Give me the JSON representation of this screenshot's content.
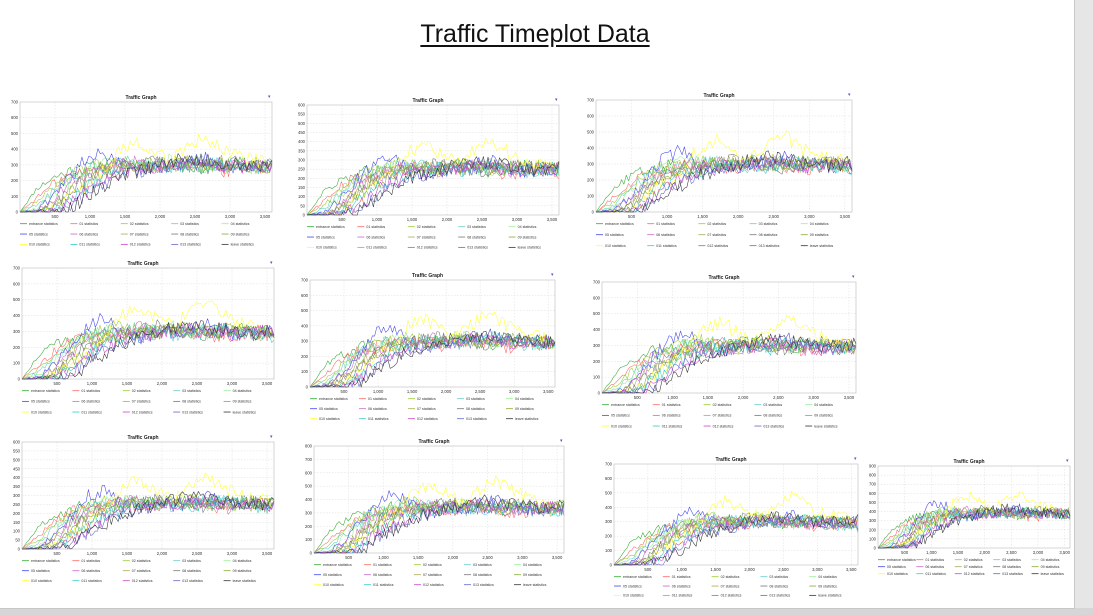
{
  "slide": {
    "title": "Traffic Timeplot Data"
  },
  "colors": {
    "series": [
      "#33aa33",
      "#ff6666",
      "#99cc33",
      "#66cccc",
      "#99ee99",
      "#4444ee",
      "#cc66cc",
      "#aaaa55",
      "#777777",
      "#88aa33",
      "#ffff33",
      "#33cccc",
      "#cc44cc",
      "#6666cc",
      "#333333"
    ],
    "grid": "#dcdcdc",
    "frame": "#b8b8b8"
  },
  "chart_data": [
    {
      "type": "line",
      "title": "Traffic Graph",
      "ylim": [
        0,
        700
      ],
      "yticks": [
        "0",
        "100",
        "200",
        "300",
        "400",
        "500",
        "600",
        "700"
      ],
      "xlim": [
        0,
        3600
      ],
      "xticks": [
        "500",
        "1,000",
        "1,500",
        "2,000",
        "2,500",
        "3,000",
        "3,500"
      ],
      "legend_position": "bottom",
      "series": [
        {
          "name": "entrance statistics",
          "values": [
            0,
            150,
            220,
            260,
            280,
            300,
            290,
            310,
            300,
            320,
            300,
            280,
            300,
            310,
            300,
            290
          ]
        },
        {
          "name": "01 statistics",
          "values": [
            0,
            90,
            180,
            240,
            260,
            280,
            300,
            290,
            270,
            300,
            310,
            290,
            260,
            280,
            300,
            270
          ]
        },
        {
          "name": "02 statistics",
          "values": [
            0,
            60,
            160,
            230,
            280,
            320,
            330,
            300,
            290,
            310,
            330,
            300,
            280,
            300,
            310,
            290
          ]
        },
        {
          "name": "03 statistics",
          "values": [
            0,
            40,
            140,
            220,
            270,
            300,
            320,
            310,
            300,
            280,
            300,
            320,
            300,
            280,
            290,
            300
          ]
        },
        {
          "name": "04 statistics",
          "values": [
            0,
            20,
            120,
            200,
            260,
            310,
            300,
            280,
            310,
            330,
            300,
            290,
            310,
            300,
            280,
            300
          ]
        },
        {
          "name": "05 statistics",
          "values": [
            0,
            10,
            100,
            220,
            350,
            380,
            300,
            260,
            280,
            300,
            320,
            340,
            300,
            280,
            300,
            290
          ]
        },
        {
          "name": "06 statistics",
          "values": [
            0,
            0,
            80,
            180,
            240,
            280,
            300,
            320,
            300,
            290,
            310,
            300,
            280,
            290,
            300,
            280
          ]
        },
        {
          "name": "07 statistics",
          "values": [
            0,
            0,
            60,
            160,
            230,
            270,
            290,
            300,
            310,
            300,
            290,
            300,
            320,
            300,
            280,
            290
          ]
        },
        {
          "name": "08 statistics",
          "values": [
            0,
            0,
            40,
            140,
            220,
            260,
            280,
            300,
            330,
            310,
            290,
            280,
            300,
            320,
            300,
            280
          ]
        },
        {
          "name": "09 statistics",
          "values": [
            0,
            0,
            30,
            120,
            200,
            250,
            270,
            290,
            300,
            310,
            300,
            290,
            310,
            300,
            290,
            300
          ]
        },
        {
          "name": "010 statistics",
          "values": [
            0,
            0,
            20,
            100,
            180,
            260,
            400,
            450,
            380,
            330,
            420,
            480,
            400,
            350,
            330,
            300
          ]
        },
        {
          "name": "011 statistics",
          "values": [
            0,
            0,
            10,
            80,
            160,
            230,
            260,
            280,
            300,
            290,
            280,
            300,
            310,
            290,
            280,
            270
          ]
        },
        {
          "name": "012 statistics",
          "values": [
            0,
            0,
            0,
            60,
            140,
            210,
            250,
            270,
            290,
            300,
            310,
            300,
            290,
            280,
            300,
            290
          ]
        },
        {
          "name": "013 statistics",
          "values": [
            0,
            0,
            0,
            40,
            120,
            190,
            240,
            260,
            280,
            290,
            300,
            310,
            300,
            290,
            280,
            300
          ]
        },
        {
          "name": "leave statistics",
          "values": [
            0,
            0,
            0,
            20,
            100,
            170,
            230,
            260,
            290,
            320,
            340,
            330,
            310,
            300,
            290,
            310
          ]
        }
      ]
    }
  ],
  "panels": [
    {
      "caption": "Traffic Graph",
      "yticks": [
        "0",
        "100",
        "200",
        "300",
        "400",
        "500",
        "600",
        "700"
      ],
      "xticks": [
        "500",
        "1,000",
        "1,500",
        "2,000",
        "2,500",
        "3,000",
        "3,500"
      ]
    },
    {
      "caption": "Traffic Graph",
      "yticks": [
        "0",
        "50",
        "100",
        "150",
        "200",
        "250",
        "300",
        "350",
        "400",
        "450",
        "500",
        "550",
        "600"
      ],
      "xticks": [
        "500",
        "1,000",
        "1,500",
        "2,000",
        "2,500",
        "3,000",
        "3,500"
      ]
    },
    {
      "caption": "Traffic Graph",
      "yticks": [
        "0",
        "100",
        "200",
        "300",
        "400",
        "500",
        "600",
        "700"
      ],
      "xticks": [
        "500",
        "1,000",
        "1,500",
        "2,000",
        "2,500",
        "3,000",
        "3,500"
      ]
    },
    {
      "caption": "Traffic Graph",
      "yticks": [
        "0",
        "100",
        "200",
        "300",
        "400",
        "500",
        "600",
        "700"
      ],
      "xticks": [
        "500",
        "1,000",
        "1,500",
        "2,000",
        "2,500",
        "3,000",
        "3,500"
      ]
    },
    {
      "caption": "Traffic Graph",
      "yticks": [
        "0",
        "100",
        "200",
        "300",
        "400",
        "500",
        "600",
        "700"
      ],
      "xticks": [
        "500",
        "1,000",
        "1,500",
        "2,000",
        "2,500",
        "3,000",
        "3,500"
      ]
    },
    {
      "caption": "Traffic Graph",
      "yticks": [
        "0",
        "100",
        "200",
        "300",
        "400",
        "500",
        "600",
        "700"
      ],
      "xticks": [
        "500",
        "1,000",
        "1,500",
        "2,000",
        "2,500",
        "3,000",
        "3,500"
      ]
    },
    {
      "caption": "Traffic Graph",
      "yticks": [
        "0",
        "50",
        "100",
        "150",
        "200",
        "250",
        "300",
        "350",
        "400",
        "450",
        "500",
        "550",
        "600"
      ],
      "xticks": [
        "500",
        "1,000",
        "1,500",
        "2,000",
        "2,500",
        "3,000",
        "3,500"
      ]
    },
    {
      "caption": "Traffic Graph",
      "yticks": [
        "0",
        "100",
        "200",
        "300",
        "400",
        "500",
        "600",
        "700",
        "800"
      ],
      "xticks": [
        "500",
        "1,000",
        "1,500",
        "2,000",
        "2,500",
        "3,000",
        "3,500"
      ]
    },
    {
      "caption": "Traffic Graph",
      "yticks": [
        "0",
        "100",
        "200",
        "300",
        "400",
        "500",
        "600",
        "700"
      ],
      "xticks": [
        "500",
        "1,000",
        "1,500",
        "2,000",
        "2,500",
        "3,000",
        "3,500"
      ]
    },
    {
      "caption": "Traffic Graph",
      "yticks": [
        "0",
        "100",
        "200",
        "300",
        "400",
        "500",
        "600",
        "700",
        "800",
        "900"
      ],
      "xticks": [
        "500",
        "1,000",
        "1,500",
        "2,000",
        "2,500",
        "3,000",
        "3,500"
      ]
    }
  ]
}
